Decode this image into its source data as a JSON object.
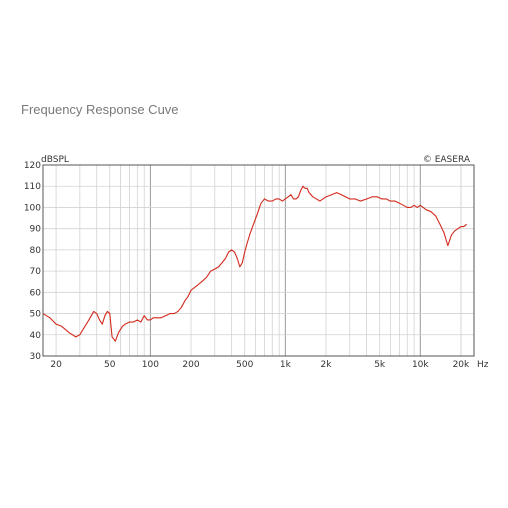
{
  "header": {
    "title": "Frequency Response Cuve"
  },
  "chart_data": {
    "type": "line",
    "title": "Frequency Response Cuve",
    "ylabel": "dBSPL",
    "xunit": "Hz",
    "watermark": "© EASERA",
    "xscale": "log",
    "xlim": [
      16,
      25000
    ],
    "ylim": [
      30,
      120
    ],
    "grid": true,
    "y_ticks": [
      30,
      40,
      50,
      60,
      70,
      80,
      90,
      100,
      110,
      120
    ],
    "x_ticks": [
      {
        "value": 20,
        "label": "20"
      },
      {
        "value": 50,
        "label": "50"
      },
      {
        "value": 100,
        "label": "100"
      },
      {
        "value": 200,
        "label": "200"
      },
      {
        "value": 500,
        "label": "500"
      },
      {
        "value": 1000,
        "label": "1k"
      },
      {
        "value": 2000,
        "label": "2k"
      },
      {
        "value": 5000,
        "label": "5k"
      },
      {
        "value": 10000,
        "label": "10k"
      },
      {
        "value": 20000,
        "label": "20k"
      }
    ],
    "colors": {
      "line": "#d42a1e",
      "grid_major": "#9a9a9a",
      "grid_minor": "#d2d2d2",
      "frame": "#555555"
    },
    "series": [
      {
        "x": [
          16,
          18,
          20,
          22,
          25,
          28,
          30,
          32,
          35,
          38,
          40,
          42,
          44,
          46,
          48,
          50,
          52,
          55,
          58,
          62,
          65,
          70,
          75,
          80,
          85,
          90,
          95,
          100,
          105,
          110,
          120,
          130,
          140,
          150,
          160,
          170,
          180,
          190,
          200,
          220,
          240,
          260,
          280,
          300,
          320,
          340,
          360,
          380,
          400,
          420,
          440,
          460,
          480,
          500,
          520,
          550,
          580,
          620,
          660,
          700,
          750,
          800,
          850,
          900,
          950,
          1000,
          1050,
          1100,
          1150,
          1200,
          1250,
          1300,
          1350,
          1400,
          1450,
          1500,
          1600,
          1700,
          1800,
          1900,
          2000,
          2200,
          2400,
          2600,
          2800,
          3000,
          3300,
          3600,
          4000,
          4400,
          4800,
          5200,
          5600,
          6000,
          6500,
          7000,
          7500,
          8000,
          8500,
          9000,
          9500,
          10000,
          10500,
          11000,
          12000,
          13000,
          14000,
          15000,
          16000,
          17000,
          18000,
          19000,
          20000,
          21000,
          22000
        ],
        "y": [
          50,
          48,
          45,
          44,
          41,
          39,
          40,
          43,
          47,
          51,
          50,
          47,
          45,
          49,
          51,
          50,
          39,
          37,
          41,
          44,
          45,
          46,
          46,
          47,
          46,
          49,
          47,
          47,
          48,
          48,
          48,
          49,
          50,
          50,
          51,
          53,
          56,
          58,
          61,
          63,
          65,
          67,
          70,
          71,
          72,
          74,
          76,
          79,
          80,
          79,
          76,
          72,
          74,
          79,
          83,
          88,
          92,
          97,
          102,
          104,
          103,
          103,
          104,
          104,
          103,
          104,
          105,
          106,
          104,
          104,
          105,
          108,
          110,
          109,
          109,
          107,
          105,
          104,
          103,
          104,
          105,
          106,
          107,
          106,
          105,
          104,
          104,
          103,
          104,
          105,
          105,
          104,
          104,
          103,
          103,
          102,
          101,
          100,
          100,
          101,
          100,
          101,
          100,
          99,
          98,
          96,
          92,
          88,
          82,
          87,
          89,
          90,
          91,
          91,
          92
        ]
      }
    ]
  }
}
